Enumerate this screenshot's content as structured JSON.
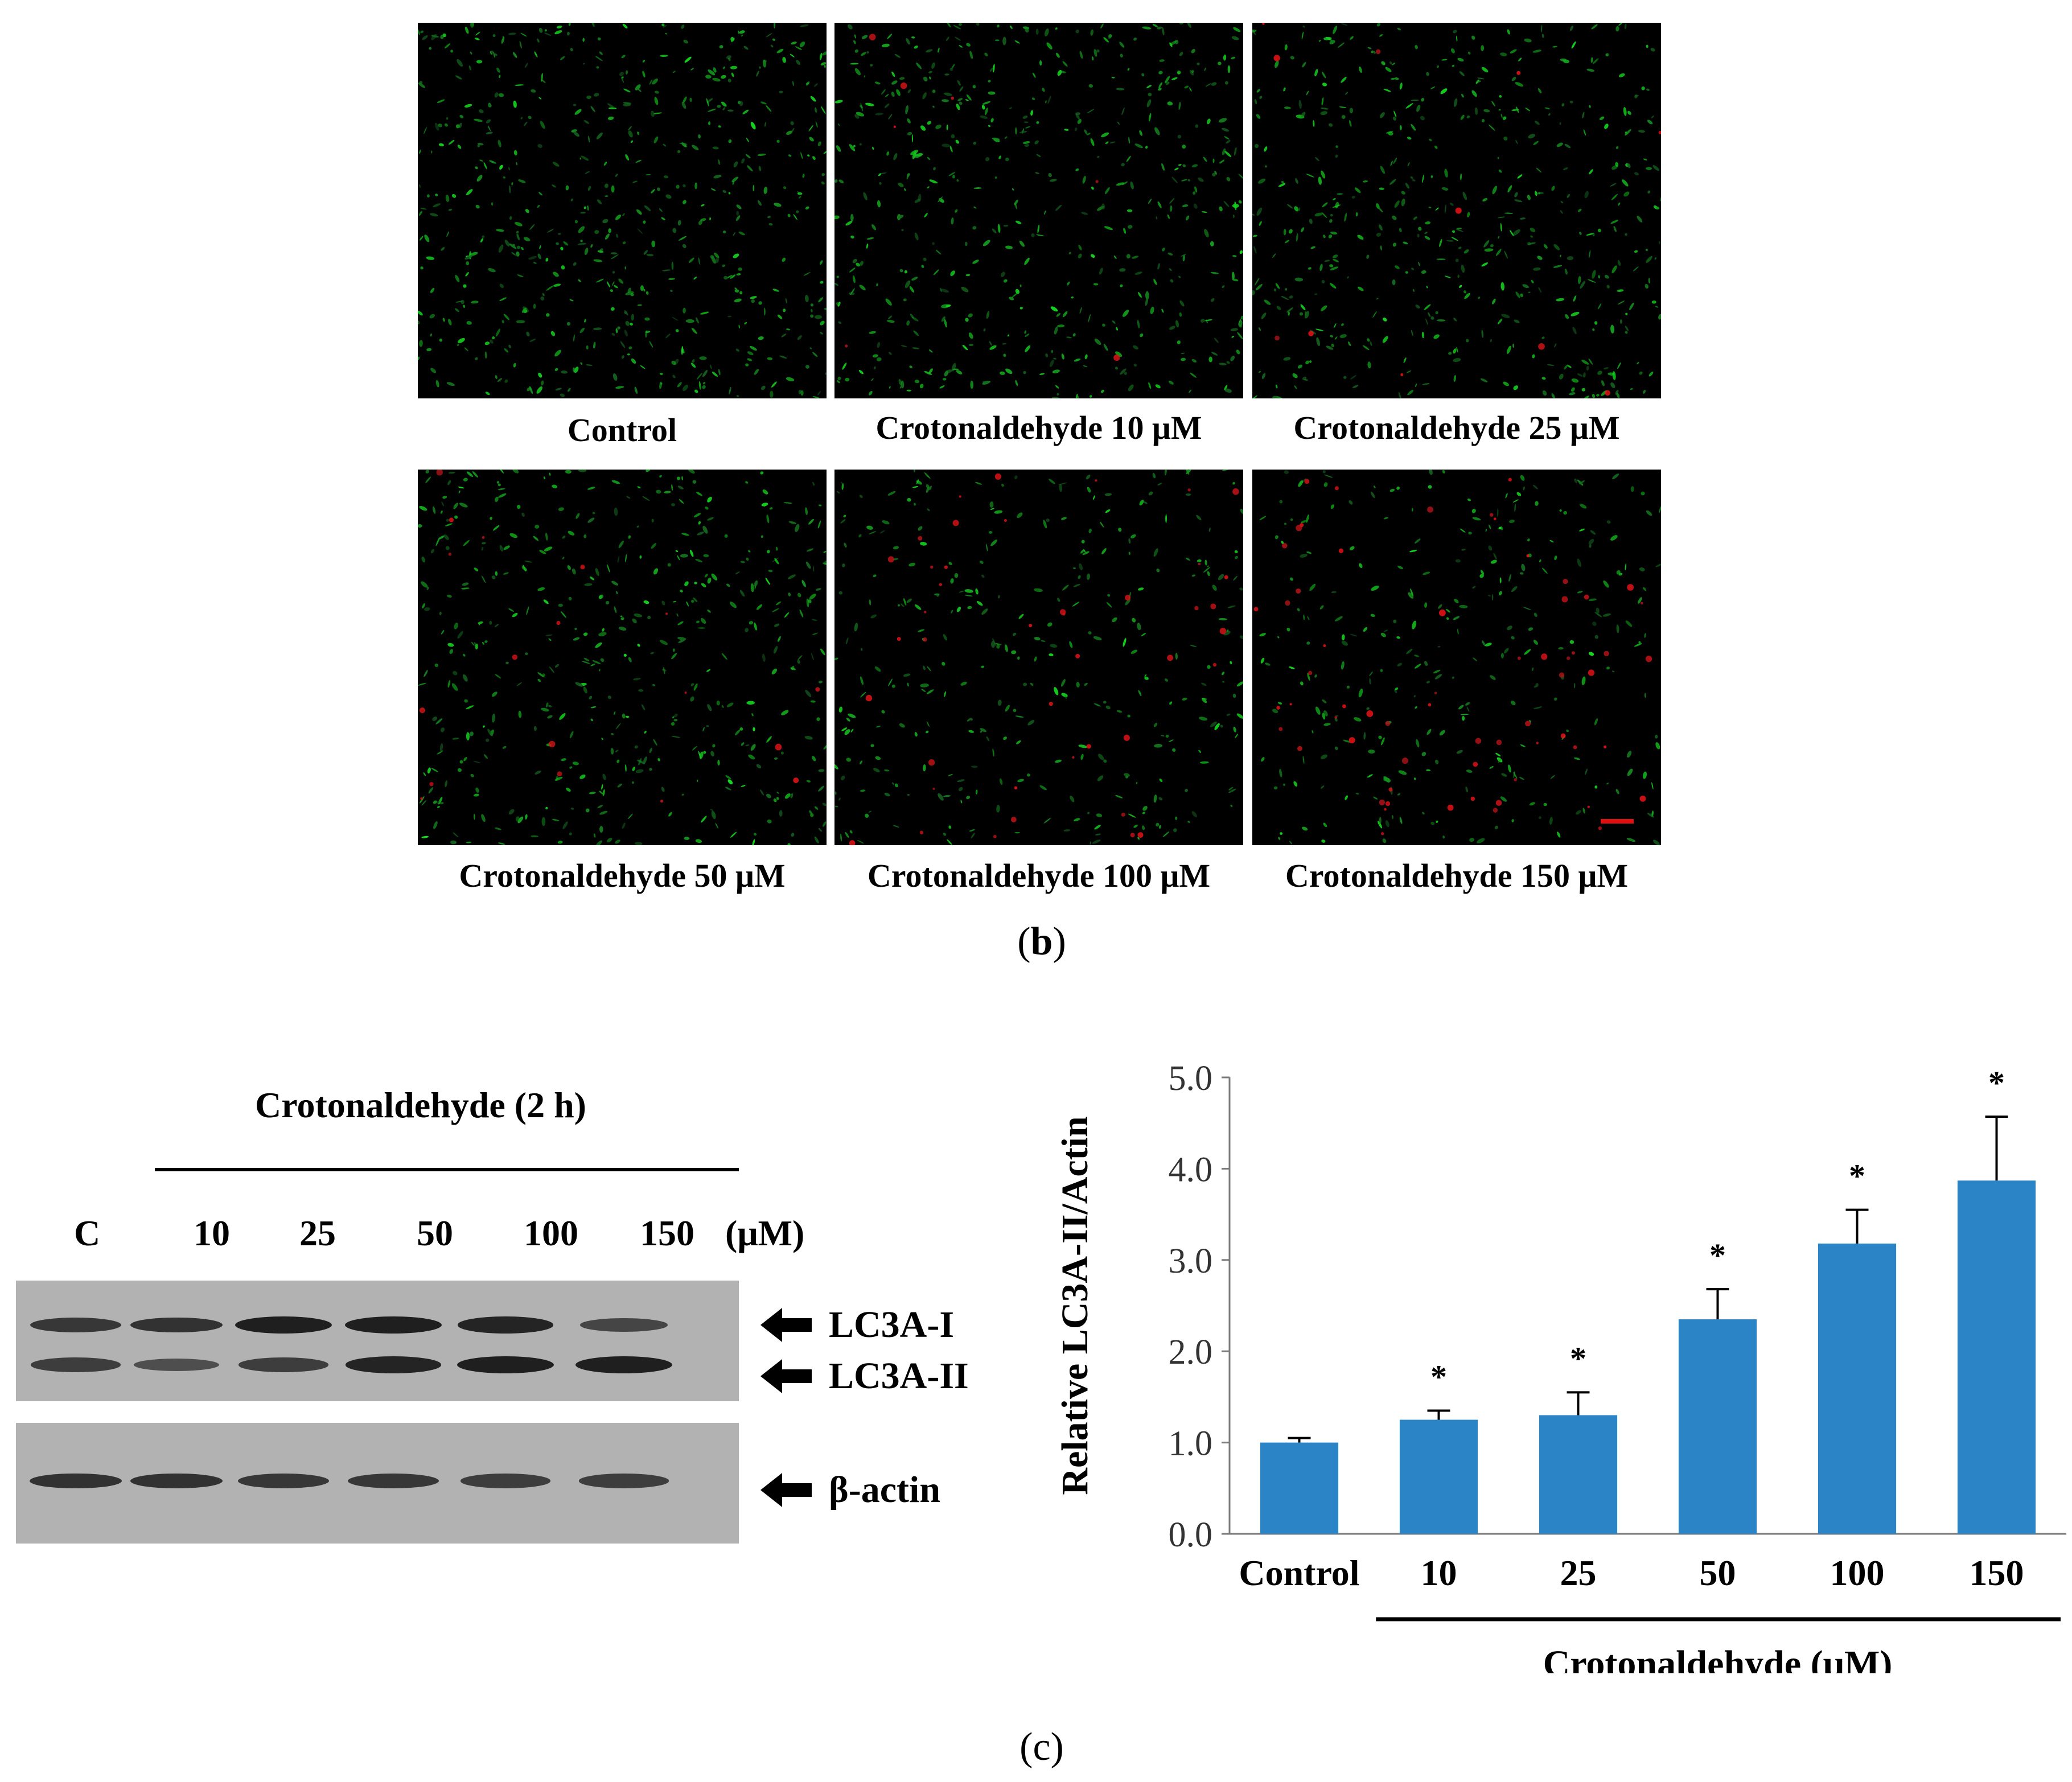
{
  "panel_b": {
    "label_letter": "b",
    "images": [
      {
        "caption": "Control",
        "red_level": 0.0,
        "green_level": 1.0
      },
      {
        "caption": "Crotonaldehyde 10 μM",
        "red_level": 0.1,
        "green_level": 0.9
      },
      {
        "caption": "Crotonaldehyde 25 μM",
        "red_level": 0.15,
        "green_level": 0.85
      },
      {
        "caption": "Crotonaldehyde 50 μM",
        "red_level": 0.25,
        "green_level": 0.8
      },
      {
        "caption": "Crotonaldehyde 100 μM",
        "red_level": 0.6,
        "green_level": 0.55
      },
      {
        "caption": "Crotonaldehyde 150 μM",
        "red_level": 0.9,
        "green_level": 0.5
      }
    ],
    "scale_bar_color": "#e01010"
  },
  "panel_c": {
    "label_letter": "c",
    "western_blot": {
      "treatment_title": "Crotonaldehyde (2 h)",
      "lane_labels": [
        "C",
        "10",
        "25",
        "50",
        "100",
        "150"
      ],
      "unit_label": "(μM)",
      "bands": [
        {
          "name": "LC3A-I",
          "intensity": [
            0.75,
            0.8,
            1.0,
            1.0,
            0.95,
            0.6
          ]
        },
        {
          "name": "LC3A-II",
          "intensity": [
            0.7,
            0.5,
            0.7,
            0.95,
            1.0,
            1.0
          ]
        },
        {
          "name": "β-actin",
          "intensity": [
            0.8,
            0.8,
            0.75,
            0.75,
            0.7,
            0.7
          ]
        }
      ]
    }
  },
  "chart_data": {
    "type": "bar",
    "categories": [
      "Control",
      "10",
      "25",
      "50",
      "100",
      "150"
    ],
    "values": [
      1.0,
      1.25,
      1.3,
      2.35,
      3.18,
      3.87
    ],
    "errors": [
      0.05,
      0.1,
      0.25,
      0.33,
      0.37,
      0.7
    ],
    "significance": [
      "",
      "*",
      "*",
      "*",
      "*",
      "*"
    ],
    "ylabel": "Relative LC3A-II/Actin",
    "xlabel": "Crotonaldehyde (μM)",
    "ylim": [
      0,
      5
    ],
    "yticks": [
      "0.0",
      "1.0",
      "2.0",
      "3.0",
      "4.0",
      "5.0"
    ],
    "bar_color": "#2a84c6",
    "grid": false
  }
}
